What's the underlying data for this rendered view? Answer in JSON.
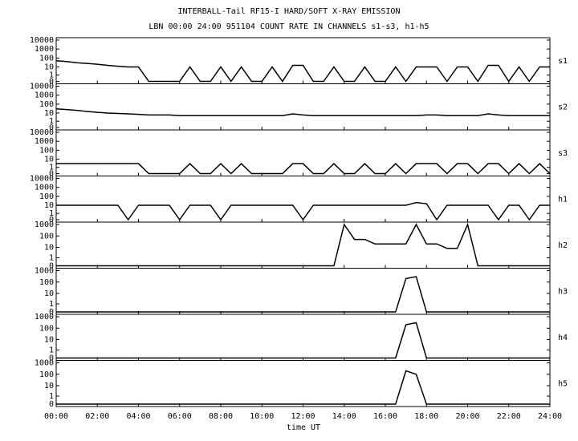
{
  "chart_data": {
    "type": "line",
    "title": "INTERBALL-Tail RF15-I HARD/SOFT X-RAY EMISSION",
    "subtitle": "LBN 00:00 24:00 951104  COUNT RATE IN CHANNELS s1-s3, h1-h5",
    "x_label": "time UT",
    "yscale": "log",
    "color": "#000000",
    "xlim": [
      0,
      24
    ],
    "xticks": [
      {
        "value": 0,
        "label": "00:00"
      },
      {
        "value": 2,
        "label": "02:00"
      },
      {
        "value": 4,
        "label": "04:00"
      },
      {
        "value": 6,
        "label": "06:00"
      },
      {
        "value": 8,
        "label": "08:00"
      },
      {
        "value": 10,
        "label": "10:00"
      },
      {
        "value": 12,
        "label": "12:00"
      },
      {
        "value": 14,
        "label": "14:00"
      },
      {
        "value": 16,
        "label": "16:00"
      },
      {
        "value": 18,
        "label": "18:00"
      },
      {
        "value": 20,
        "label": "20:00"
      },
      {
        "value": 22,
        "label": "22:00"
      },
      {
        "value": 24,
        "label": "24:00"
      }
    ],
    "x": [
      0,
      0.5,
      1,
      1.5,
      2,
      2.5,
      3,
      3.5,
      4,
      4.5,
      5,
      5.5,
      6,
      6.5,
      7,
      7.5,
      8,
      8.5,
      9,
      9.5,
      10,
      10.5,
      11,
      11.5,
      12,
      12.5,
      13,
      13.5,
      14,
      14.5,
      15,
      15.5,
      16,
      16.5,
      17,
      17.5,
      18,
      18.5,
      19,
      19.5,
      20,
      20.5,
      21,
      21.5,
      22,
      22.5,
      23,
      23.5,
      24
    ],
    "panels": [
      {
        "name": "s1",
        "ylim": [
          0,
          10000
        ],
        "yticks": [
          0,
          1,
          10,
          100,
          1000,
          10000
        ],
        "values": [
          50,
          40,
          30,
          25,
          20,
          15,
          12,
          10,
          10,
          0,
          0,
          0,
          0,
          10,
          0,
          0,
          10,
          0,
          10,
          0,
          0,
          10,
          0,
          15,
          15,
          0,
          0,
          10,
          0,
          0,
          10,
          0,
          0,
          10,
          0,
          10,
          10,
          10,
          0,
          10,
          10,
          0,
          15,
          15,
          0,
          10,
          0,
          10,
          10
        ]
      },
      {
        "name": "s2",
        "ylim": [
          0,
          10000
        ],
        "yticks": [
          0,
          1,
          10,
          100,
          1000,
          10000
        ],
        "values": [
          30,
          25,
          20,
          15,
          12,
          10,
          9,
          8,
          7,
          6,
          6,
          6,
          5,
          5,
          5,
          5,
          5,
          5,
          5,
          5,
          5,
          5,
          5,
          8,
          6,
          5,
          5,
          5,
          5,
          5,
          5,
          5,
          5,
          5,
          5,
          5,
          6,
          6,
          5,
          5,
          5,
          5,
          8,
          6,
          5,
          5,
          5,
          5,
          5
        ]
      },
      {
        "name": "s3",
        "ylim": [
          0,
          10000
        ],
        "yticks": [
          0,
          1,
          10,
          100,
          1000,
          10000
        ],
        "values": [
          3,
          3,
          3,
          3,
          3,
          3,
          3,
          3,
          3,
          0,
          0,
          0,
          0,
          3,
          0,
          0,
          3,
          0,
          3,
          0,
          0,
          0,
          0,
          3,
          3,
          0,
          0,
          3,
          0,
          0,
          3,
          0,
          0,
          3,
          0,
          3,
          3,
          3,
          0,
          3,
          3,
          0,
          3,
          3,
          0,
          3,
          0,
          3,
          0
        ]
      },
      {
        "name": "h1",
        "ylim": [
          0,
          10000
        ],
        "yticks": [
          0,
          1,
          10,
          100,
          1000,
          10000
        ],
        "values": [
          10,
          10,
          10,
          10,
          10,
          10,
          10,
          0,
          10,
          10,
          10,
          10,
          0,
          10,
          10,
          10,
          0,
          10,
          10,
          10,
          10,
          10,
          10,
          10,
          0,
          10,
          10,
          10,
          10,
          10,
          10,
          10,
          10,
          10,
          10,
          20,
          15,
          0,
          10,
          10,
          10,
          10,
          10,
          0,
          10,
          10,
          0,
          10,
          10
        ]
      },
      {
        "name": "h2",
        "ylim": [
          0,
          1000
        ],
        "yticks": [
          0,
          1,
          10,
          100,
          1000
        ],
        "values": [
          0,
          0,
          0,
          0,
          0,
          0,
          0,
          0,
          0,
          0,
          0,
          0,
          0,
          0,
          0,
          0,
          0,
          0,
          0,
          0,
          0,
          0,
          0,
          0,
          0,
          0,
          0,
          0,
          1000,
          50,
          50,
          20,
          20,
          20,
          20,
          1000,
          20,
          20,
          8,
          8,
          1000,
          0,
          0,
          0,
          0,
          0,
          0,
          0,
          0
        ]
      },
      {
        "name": "h3",
        "ylim": [
          0,
          1000
        ],
        "yticks": [
          0,
          1,
          10,
          100,
          1000
        ],
        "values": [
          0,
          0,
          0,
          0,
          0,
          0,
          0,
          0,
          0,
          0,
          0,
          0,
          0,
          0,
          0,
          0,
          0,
          0,
          0,
          0,
          0,
          0,
          0,
          0,
          0,
          0,
          0,
          0,
          0,
          0,
          0,
          0,
          0,
          0,
          200,
          300,
          0,
          0,
          0,
          0,
          0,
          0,
          0,
          0,
          0,
          0,
          0,
          0,
          0
        ]
      },
      {
        "name": "h4",
        "ylim": [
          0,
          1000
        ],
        "yticks": [
          0,
          1,
          10,
          100,
          1000
        ],
        "values": [
          0,
          0,
          0,
          0,
          0,
          0,
          0,
          0,
          0,
          0,
          0,
          0,
          0,
          0,
          0,
          0,
          0,
          0,
          0,
          0,
          0,
          0,
          0,
          0,
          0,
          0,
          0,
          0,
          0,
          0,
          0,
          0,
          0,
          0,
          200,
          300,
          0,
          0,
          0,
          0,
          0,
          0,
          0,
          0,
          0,
          0,
          0,
          0,
          0
        ]
      },
      {
        "name": "h5",
        "ylim": [
          0,
          1000
        ],
        "yticks": [
          0,
          1,
          10,
          100,
          1000
        ],
        "values": [
          0,
          0,
          0,
          0,
          0,
          0,
          0,
          0,
          0,
          0,
          0,
          0,
          0,
          0,
          0,
          0,
          0,
          0,
          0,
          0,
          0,
          0,
          0,
          0,
          0,
          0,
          0,
          0,
          0,
          0,
          0,
          0,
          0,
          0,
          200,
          100,
          0,
          0,
          0,
          0,
          0,
          0,
          0,
          0,
          0,
          0,
          0,
          0,
          0
        ]
      }
    ]
  }
}
